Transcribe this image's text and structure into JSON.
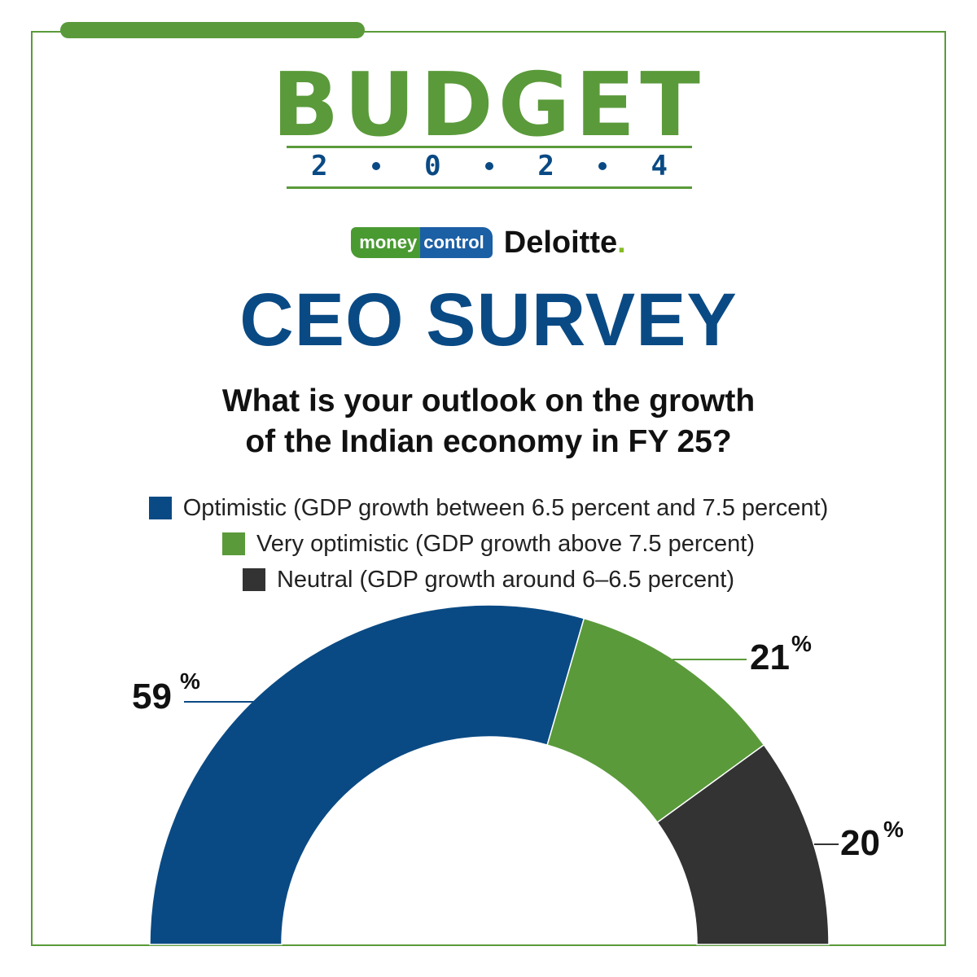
{
  "header": {
    "budget_word": "BUDGET",
    "budget_year_digits": [
      "2",
      "0",
      "2",
      "4"
    ],
    "brand_moneycontrol_a": "money",
    "brand_moneycontrol_b": "control",
    "brand_deloitte": "Deloitte",
    "brand_deloitte_dot": "."
  },
  "title": "CEO SURVEY",
  "question_line1": "What is your outlook on the growth",
  "question_line2": "of the Indian economy in FY 25?",
  "colors": {
    "green": "#5a9a3a",
    "blue": "#0a4a84",
    "dark": "#333333"
  },
  "chart_data": {
    "type": "pie",
    "style": "semi-donut",
    "categories": [
      "Optimistic (GDP growth between 6.5 percent and 7.5 percent)",
      "Very optimistic (GDP growth above 7.5 percent)",
      "Neutral (GDP growth around 6–6.5 percent)"
    ],
    "values": [
      59,
      21,
      20
    ],
    "labels": [
      "59",
      "21",
      "20"
    ],
    "unit": "%",
    "colors": [
      "#0a4a84",
      "#5a9a3a",
      "#333333"
    ],
    "legend_placement": "top-center"
  }
}
